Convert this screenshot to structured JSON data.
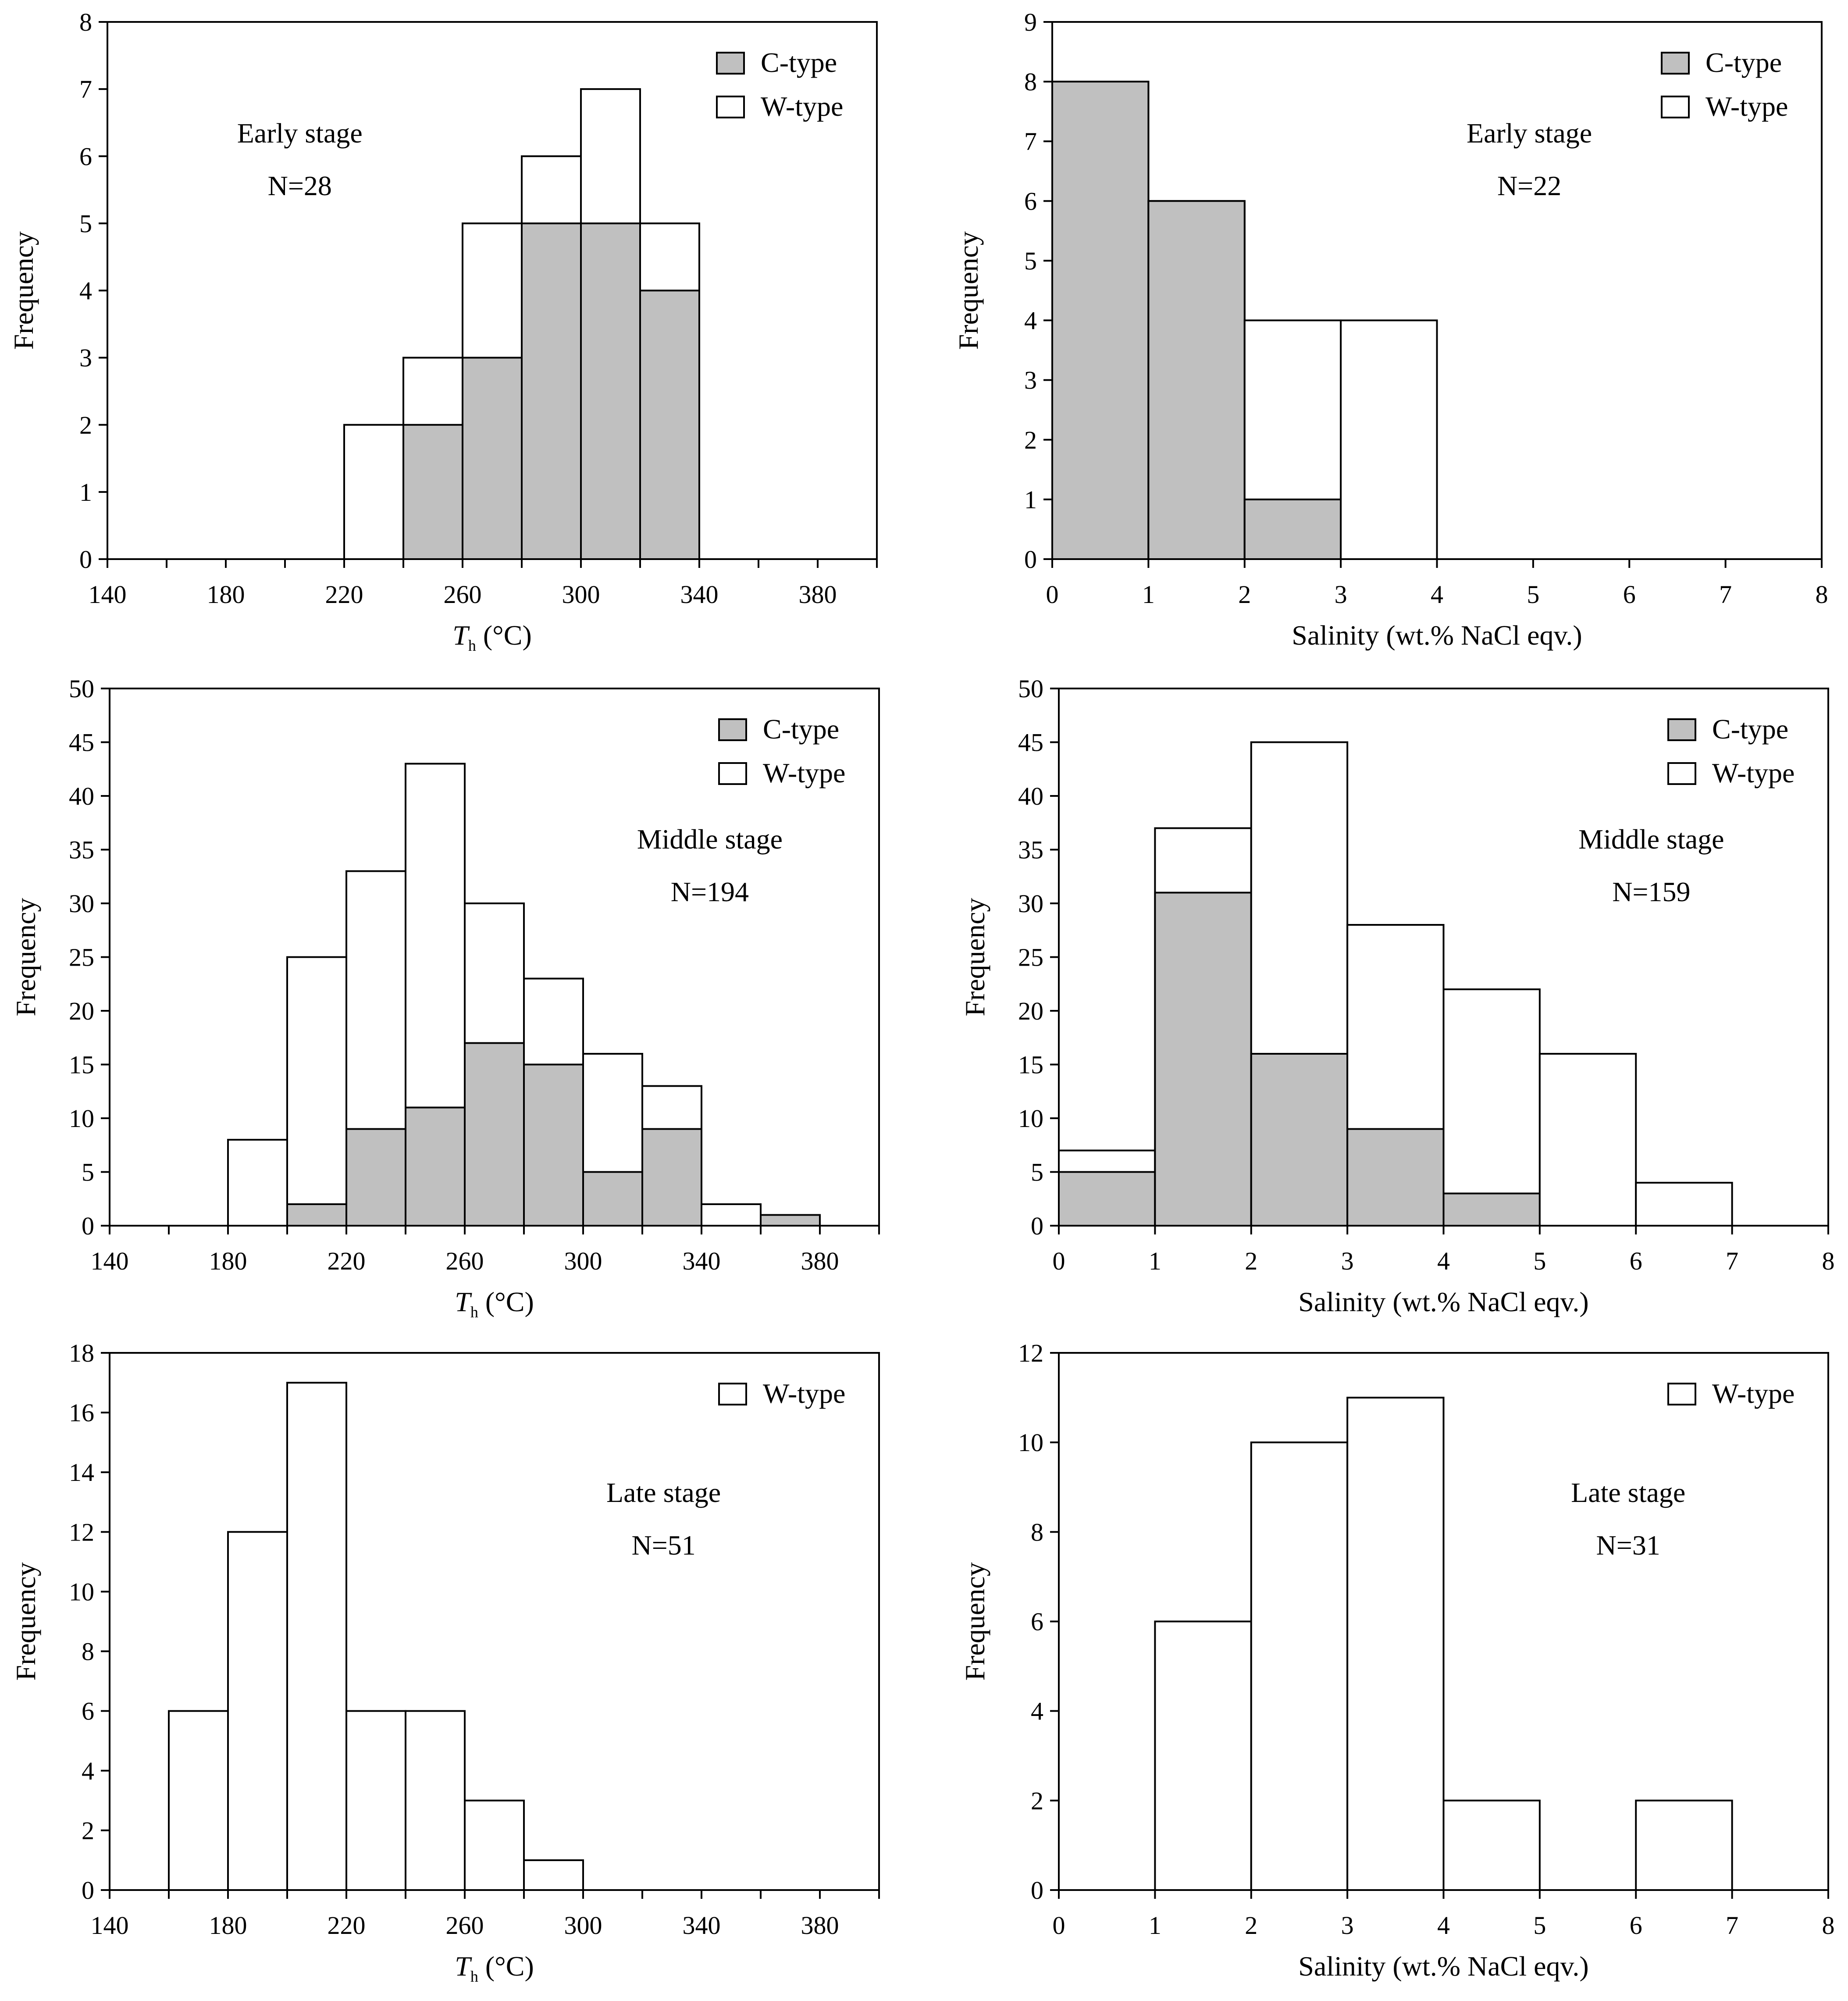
{
  "chart_data": [
    {
      "id": "early-th",
      "type": "bar",
      "title": "",
      "xlabel_main": "T",
      "xlabel_sub": "h",
      "xlabel_rest": " (°C)",
      "ylabel": "Frequency",
      "stage_label": "Early stage",
      "n_label": "N=28",
      "xlim": [
        140,
        400
      ],
      "x_tick_step": 20,
      "x_tick_labels": [
        "140",
        "180",
        "220",
        "260",
        "300",
        "340",
        "380"
      ],
      "ylim": [
        0,
        8
      ],
      "y_ticks": [
        "0",
        "1",
        "2",
        "3",
        "4",
        "5",
        "6",
        "7",
        "8"
      ],
      "bin_width": 20,
      "legend": [
        "C-type",
        "W-type"
      ],
      "bins": [
        {
          "x": 220,
          "total": 2,
          "c": 0
        },
        {
          "x": 240,
          "total": 3,
          "c": 2
        },
        {
          "x": 260,
          "total": 5,
          "c": 3
        },
        {
          "x": 280,
          "total": 6,
          "c": 5
        },
        {
          "x": 300,
          "total": 7,
          "c": 5
        },
        {
          "x": 320,
          "total": 5,
          "c": 4
        }
      ]
    },
    {
      "id": "early-sal",
      "type": "bar",
      "title": "",
      "xlabel": "Salinity (wt.% NaCl eqv.)",
      "ylabel": "Frequency",
      "stage_label": "Early stage",
      "n_label": "N=22",
      "xlim": [
        0,
        8
      ],
      "x_tick_step": 1,
      "x_tick_labels": [
        "0",
        "1",
        "2",
        "3",
        "4",
        "5",
        "6",
        "7",
        "8"
      ],
      "ylim": [
        0,
        9
      ],
      "y_ticks": [
        "0",
        "1",
        "2",
        "3",
        "4",
        "5",
        "6",
        "7",
        "8",
        "9"
      ],
      "bin_width": 1,
      "legend": [
        "C-type",
        "W-type"
      ],
      "bins": [
        {
          "x": 0,
          "total": 8,
          "c": 8
        },
        {
          "x": 1,
          "total": 6,
          "c": 6
        },
        {
          "x": 2,
          "total": 4,
          "c": 1
        },
        {
          "x": 3,
          "total": 4,
          "c": 0
        }
      ]
    },
    {
      "id": "middle-th",
      "type": "bar",
      "title": "",
      "xlabel_main": "T",
      "xlabel_sub": "h",
      "xlabel_rest": " (°C)",
      "ylabel": "Frequency",
      "stage_label": "Middle stage",
      "n_label": "N=194",
      "xlim": [
        140,
        400
      ],
      "x_tick_step": 20,
      "x_tick_labels": [
        "140",
        "180",
        "220",
        "260",
        "300",
        "340",
        "380"
      ],
      "ylim": [
        0,
        50
      ],
      "y_ticks": [
        "0",
        "5",
        "10",
        "15",
        "20",
        "25",
        "30",
        "35",
        "40",
        "45",
        "50"
      ],
      "bin_width": 20,
      "legend": [
        "C-type",
        "W-type"
      ],
      "bins": [
        {
          "x": 180,
          "total": 8,
          "c": 0
        },
        {
          "x": 200,
          "total": 25,
          "c": 2
        },
        {
          "x": 220,
          "total": 33,
          "c": 9
        },
        {
          "x": 240,
          "total": 43,
          "c": 11
        },
        {
          "x": 260,
          "total": 30,
          "c": 17
        },
        {
          "x": 280,
          "total": 23,
          "c": 15
        },
        {
          "x": 300,
          "total": 16,
          "c": 5
        },
        {
          "x": 320,
          "total": 13,
          "c": 9
        },
        {
          "x": 340,
          "total": 2,
          "c": 0
        },
        {
          "x": 360,
          "total": 1,
          "c": 1
        }
      ]
    },
    {
      "id": "middle-sal",
      "type": "bar",
      "title": "",
      "xlabel": "Salinity (wt.% NaCl eqv.)",
      "ylabel": "Frequency",
      "stage_label": "Middle stage",
      "n_label": "N=159",
      "xlim": [
        0,
        8
      ],
      "x_tick_step": 1,
      "x_tick_labels": [
        "0",
        "1",
        "2",
        "3",
        "4",
        "5",
        "6",
        "7",
        "8"
      ],
      "ylim": [
        0,
        50
      ],
      "y_ticks": [
        "0",
        "5",
        "10",
        "15",
        "20",
        "25",
        "30",
        "35",
        "40",
        "45",
        "50"
      ],
      "bin_width": 1,
      "legend": [
        "C-type",
        "W-type"
      ],
      "bins": [
        {
          "x": 0,
          "total": 7,
          "c": 5
        },
        {
          "x": 1,
          "total": 37,
          "c": 31
        },
        {
          "x": 2,
          "total": 45,
          "c": 16
        },
        {
          "x": 3,
          "total": 28,
          "c": 9
        },
        {
          "x": 4,
          "total": 22,
          "c": 3
        },
        {
          "x": 5,
          "total": 16,
          "c": 0
        },
        {
          "x": 6,
          "total": 4,
          "c": 0
        }
      ]
    },
    {
      "id": "late-th",
      "type": "bar",
      "title": "",
      "xlabel_main": "T",
      "xlabel_sub": "h",
      "xlabel_rest": " (°C)",
      "ylabel": "Frequency",
      "stage_label": "Late stage",
      "n_label": "N=51",
      "xlim": [
        140,
        400
      ],
      "x_tick_step": 20,
      "x_tick_labels": [
        "140",
        "180",
        "220",
        "260",
        "300",
        "340",
        "380"
      ],
      "ylim": [
        0,
        18
      ],
      "y_ticks": [
        "0",
        "2",
        "4",
        "6",
        "8",
        "10",
        "12",
        "14",
        "16",
        "18"
      ],
      "bin_width": 20,
      "legend": [
        "W-type"
      ],
      "bins": [
        {
          "x": 160,
          "total": 6,
          "c": 0
        },
        {
          "x": 180,
          "total": 12,
          "c": 0
        },
        {
          "x": 200,
          "total": 17,
          "c": 0
        },
        {
          "x": 220,
          "total": 6,
          "c": 0
        },
        {
          "x": 240,
          "total": 6,
          "c": 0
        },
        {
          "x": 260,
          "total": 3,
          "c": 0
        },
        {
          "x": 280,
          "total": 1,
          "c": 0
        }
      ]
    },
    {
      "id": "late-sal",
      "type": "bar",
      "title": "",
      "xlabel": "Salinity (wt.% NaCl eqv.)",
      "ylabel": "Frequency",
      "stage_label": "Late stage",
      "n_label": "N=31",
      "xlim": [
        0,
        8
      ],
      "x_tick_step": 1,
      "x_tick_labels": [
        "0",
        "1",
        "2",
        "3",
        "4",
        "5",
        "6",
        "7",
        "8"
      ],
      "ylim": [
        0,
        12
      ],
      "y_ticks": [
        "0",
        "2",
        "4",
        "6",
        "8",
        "10",
        "12"
      ],
      "bin_width": 1,
      "legend": [
        "W-type"
      ],
      "bins": [
        {
          "x": 1,
          "total": 6,
          "c": 0
        },
        {
          "x": 2,
          "total": 10,
          "c": 0
        },
        {
          "x": 3,
          "total": 11,
          "c": 0
        },
        {
          "x": 4,
          "total": 2,
          "c": 0
        },
        {
          "x": 6,
          "total": 2,
          "c": 0
        }
      ]
    }
  ]
}
